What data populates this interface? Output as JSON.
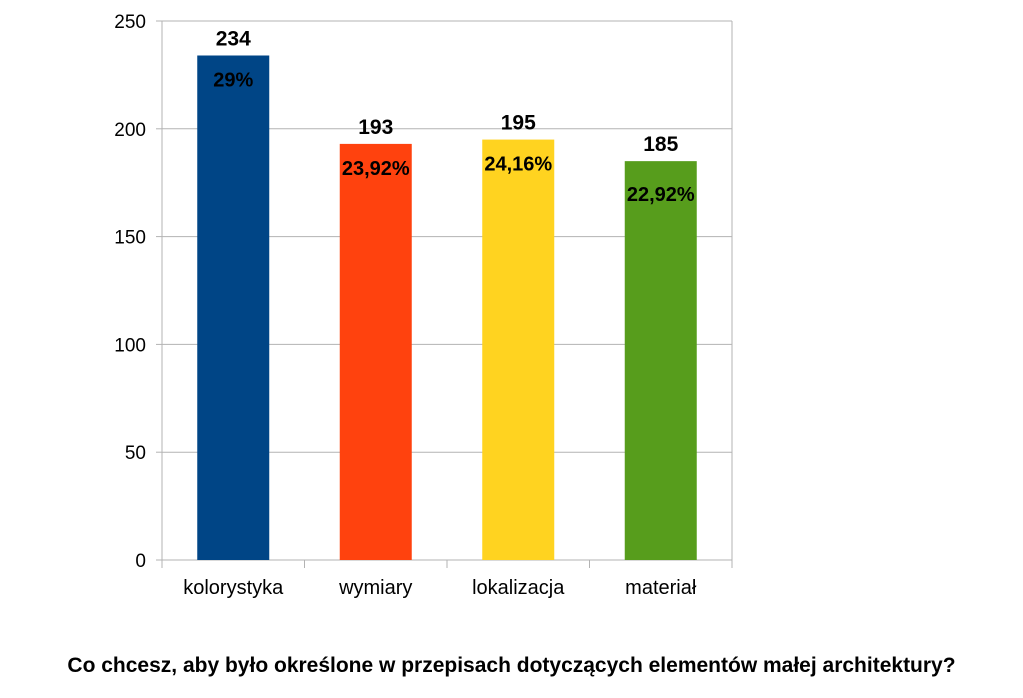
{
  "chart_data": {
    "type": "bar",
    "categories": [
      "kolorystyka",
      "wymiary",
      "lokalizacja",
      "materiał"
    ],
    "values": [
      234,
      193,
      195,
      185
    ],
    "percent_labels": [
      "29%",
      "23,92%",
      "24,16%",
      "22,92%"
    ],
    "colors": [
      "#004586",
      "#ff420e",
      "#ffd320",
      "#579d1c"
    ],
    "ylim": [
      0,
      250
    ],
    "yticks": [
      0,
      50,
      100,
      150,
      200,
      250
    ],
    "grid": true,
    "legend": "none",
    "caption": "Co chcesz, aby było określone w przepisach dotyczących elementów małej architektury?"
  }
}
